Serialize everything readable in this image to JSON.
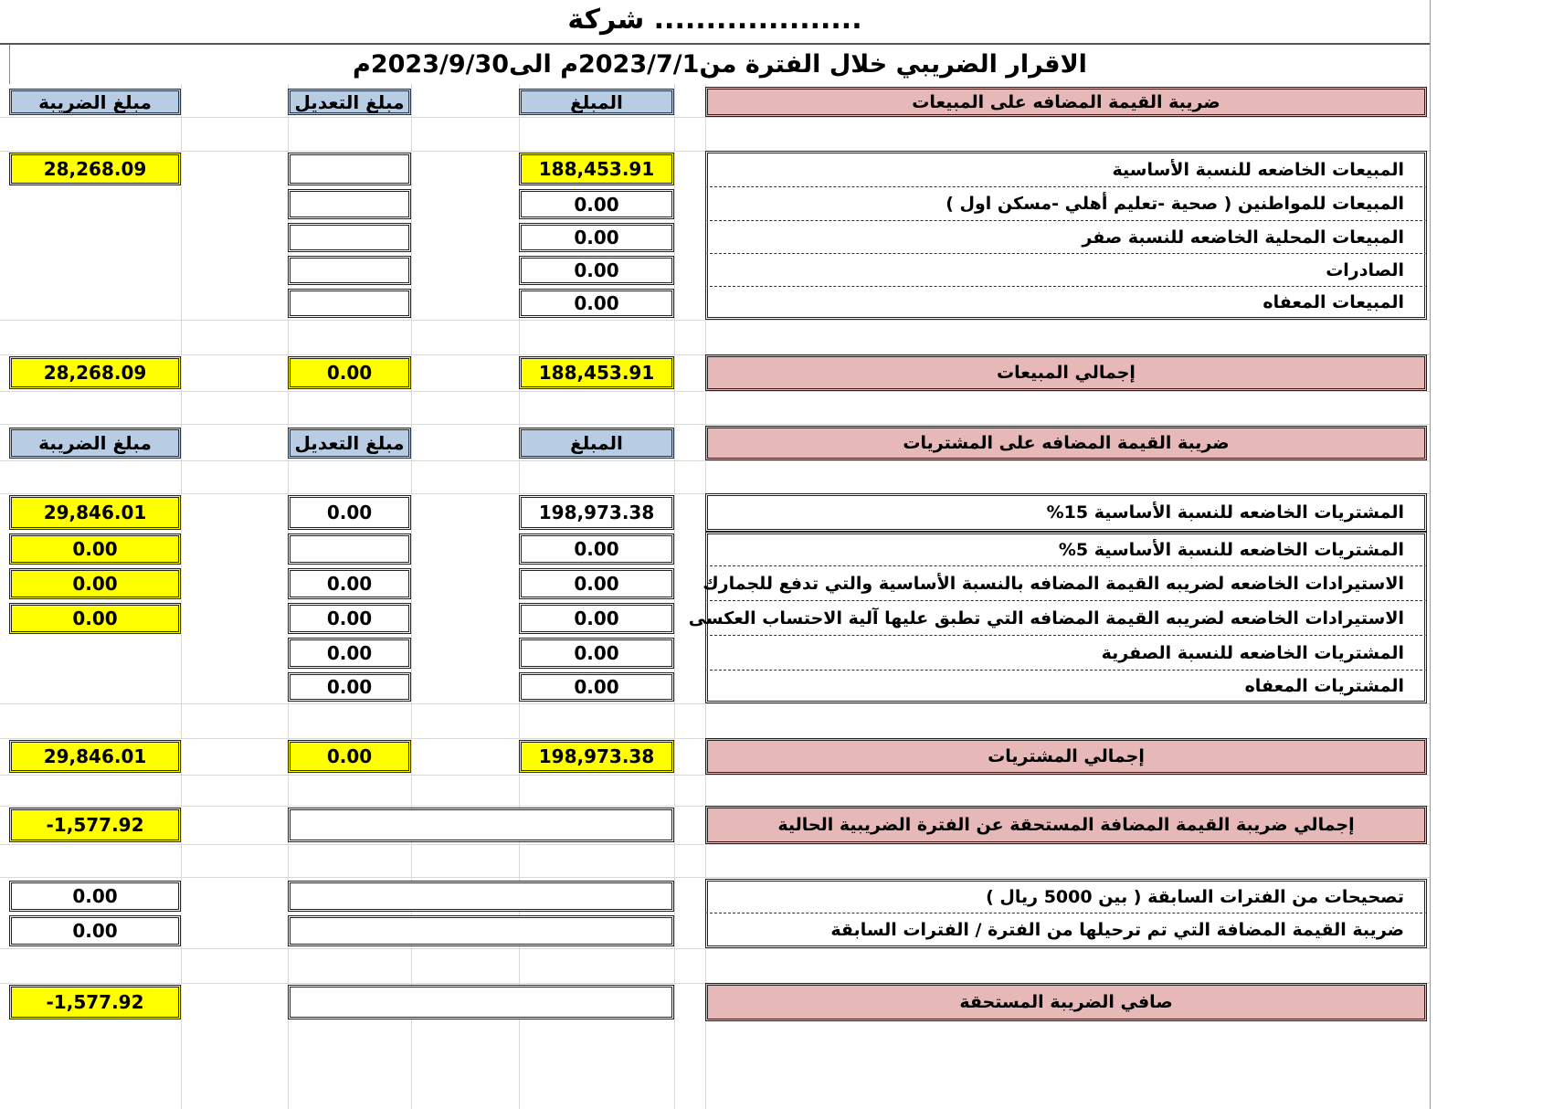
{
  "title": "شركة ....................",
  "subtitle": "الاقرار الضريبي خلال الفترة من2023/7/1م الى2023/9/30م",
  "colors": {
    "header_blue": "#b8cce4",
    "label_pink": "#e6b8b7",
    "highlight_yellow": "#ffff00"
  },
  "rows": [
    {
      "label": {
        "text": "ضريبة القيمة المضافه على المبيعات",
        "style": "pink"
      },
      "amount": {
        "value": "المبلغ",
        "style": "header"
      },
      "adjustment": {
        "value": "مبلغ التعديل",
        "style": "header"
      },
      "tax": {
        "value": "مبلغ الضريبة",
        "style": "header"
      }
    },
    {
      "label": {
        "text": "المبيعات الخاضعه للنسبة الأساسية",
        "style": "plain"
      },
      "amount": {
        "value": "188,453.91",
        "style": "yellow"
      },
      "adjustment": {
        "value": "",
        "style": "plain"
      },
      "tax": {
        "value": "28,268.09",
        "style": "yellow"
      }
    },
    {
      "label": {
        "text": "المبيعات للمواطنين ( صحية -تعليم أهلي -مسكن اول )",
        "style": "plain"
      },
      "amount": {
        "value": "0.00",
        "style": "plain"
      },
      "adjustment": {
        "value": "",
        "style": "plain"
      },
      "tax": {
        "value": "",
        "style": "none"
      }
    },
    {
      "label": {
        "text": "المبيعات المحلية الخاضعه للنسبة صفر",
        "style": "plain"
      },
      "amount": {
        "value": "0.00",
        "style": "plain"
      },
      "adjustment": {
        "value": "",
        "style": "plain"
      },
      "tax": {
        "value": "",
        "style": "none"
      }
    },
    {
      "label": {
        "text": "الصادرات",
        "style": "plain"
      },
      "amount": {
        "value": "0.00",
        "style": "plain"
      },
      "adjustment": {
        "value": "",
        "style": "plain"
      },
      "tax": {
        "value": "",
        "style": "none"
      }
    },
    {
      "label": {
        "text": "المبيعات المعفاه",
        "style": "plain"
      },
      "amount": {
        "value": "0.00",
        "style": "plain"
      },
      "adjustment": {
        "value": "",
        "style": "plain"
      },
      "tax": {
        "value": "",
        "style": "none"
      }
    },
    {
      "label": {
        "text": "إجمالي المبيعات",
        "style": "pink"
      },
      "amount": {
        "value": "188,453.91",
        "style": "yellow"
      },
      "adjustment": {
        "value": "0.00",
        "style": "yellow"
      },
      "tax": {
        "value": "28,268.09",
        "style": "yellow"
      }
    },
    {
      "label": {
        "text": "ضريبة القيمة المضافه على المشتريات",
        "style": "pink"
      },
      "amount": {
        "value": "المبلغ",
        "style": "header"
      },
      "adjustment": {
        "value": "مبلغ التعديل",
        "style": "header"
      },
      "tax": {
        "value": "مبلغ الضريبة",
        "style": "header"
      }
    },
    {
      "label": {
        "text": "المشتريات الخاضعه للنسبة الأساسية 15%",
        "style": "plain"
      },
      "amount": {
        "value": "198,973.38",
        "style": "plain"
      },
      "adjustment": {
        "value": "0.00",
        "style": "plain"
      },
      "tax": {
        "value": "29,846.01",
        "style": "yellow"
      }
    },
    {
      "label": {
        "text": "المشتريات الخاضعه للنسبة الأساسية 5%",
        "style": "plain"
      },
      "amount": {
        "value": "0.00",
        "style": "plain"
      },
      "adjustment": {
        "value": "",
        "style": "plain"
      },
      "tax": {
        "value": "0.00",
        "style": "yellow"
      }
    },
    {
      "label": {
        "text": "الاستيرادات الخاضعه لضريبه القيمة المضافه بالنسبة الأساسية والتي تدفع للجمارك",
        "style": "plain"
      },
      "amount": {
        "value": "0.00",
        "style": "plain"
      },
      "adjustment": {
        "value": "0.00",
        "style": "plain"
      },
      "tax": {
        "value": "0.00",
        "style": "yellow"
      }
    },
    {
      "label": {
        "text": "الاستيرادات الخاضعه لضريبه القيمة المضافه التي تطبق عليها آلية الاحتساب العكسى",
        "style": "plain"
      },
      "amount": {
        "value": "0.00",
        "style": "plain"
      },
      "adjustment": {
        "value": "0.00",
        "style": "plain"
      },
      "tax": {
        "value": "0.00",
        "style": "yellow"
      }
    },
    {
      "label": {
        "text": "المشتريات الخاضعه للنسبة الصفرية",
        "style": "plain"
      },
      "amount": {
        "value": "0.00",
        "style": "plain"
      },
      "adjustment": {
        "value": "0.00",
        "style": "plain"
      },
      "tax": {
        "value": "",
        "style": "none"
      }
    },
    {
      "label": {
        "text": "المشتريات المعفاه",
        "style": "plain"
      },
      "amount": {
        "value": "0.00",
        "style": "plain"
      },
      "adjustment": {
        "value": "0.00",
        "style": "plain"
      },
      "tax": {
        "value": "",
        "style": "none"
      }
    },
    {
      "label": {
        "text": "إجمالي المشتريات",
        "style": "pink"
      },
      "amount": {
        "value": "198,973.38",
        "style": "yellow"
      },
      "adjustment": {
        "value": "0.00",
        "style": "yellow"
      },
      "tax": {
        "value": "29,846.01",
        "style": "yellow"
      }
    },
    {
      "label": {
        "text": "إجمالي ضريبة القيمة المضافة المستحقة عن الفترة الضريبية الحالية",
        "style": "pink"
      },
      "wide": {
        "value": "",
        "style": "plain"
      },
      "tax": {
        "value": "-1,577.92",
        "style": "yellow"
      }
    },
    {
      "label": {
        "text": "تصحيحات من الفترات السابقة ( بين 5000 ريال )",
        "style": "plain"
      },
      "wide": {
        "value": "",
        "style": "plain"
      },
      "tax": {
        "value": "0.00",
        "style": "plain"
      }
    },
    {
      "label": {
        "text": "ضريبة القيمة المضافة التي تم ترحيلها من الفترة / الفترات السابقة",
        "style": "plain"
      },
      "wide": {
        "value": "",
        "style": "plain"
      },
      "tax": {
        "value": "0.00",
        "style": "plain"
      }
    },
    {
      "label": {
        "text": "صافي الضريبة المستحقة",
        "style": "pink"
      },
      "wide": {
        "value": "",
        "style": "plain"
      },
      "tax": {
        "value": "-1,577.92",
        "style": "yellow"
      }
    }
  ]
}
